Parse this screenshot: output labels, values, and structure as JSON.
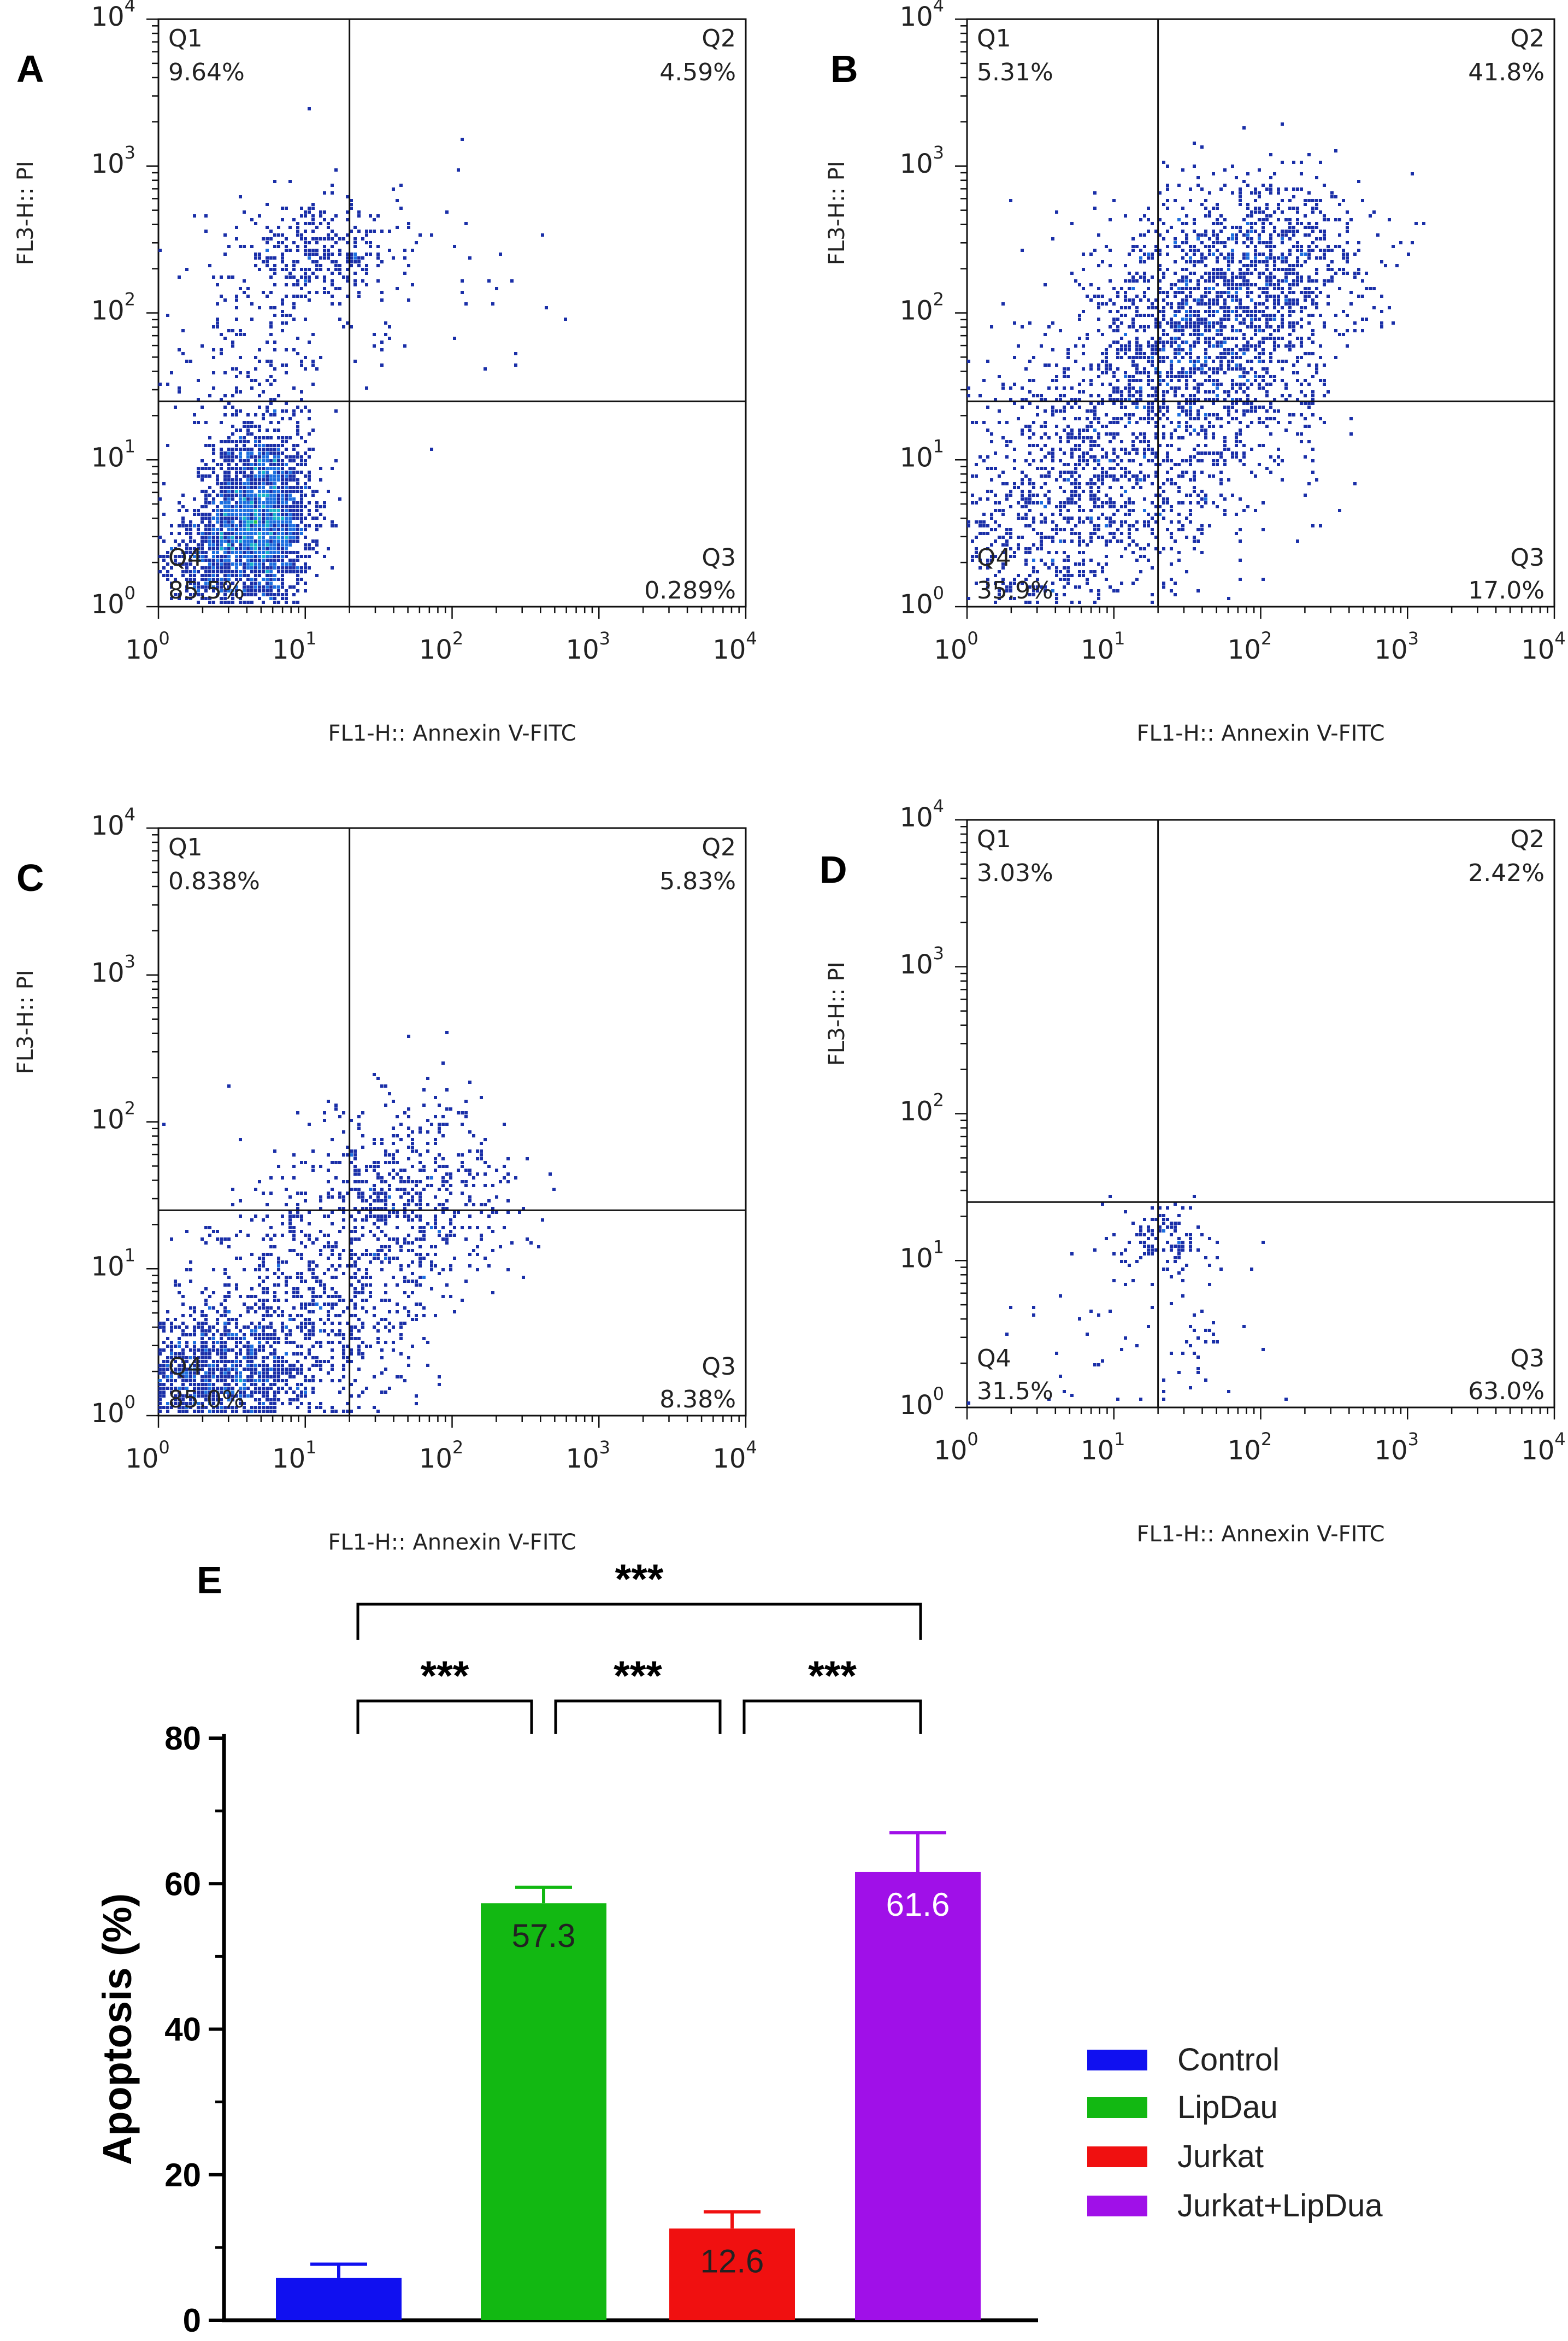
{
  "chart_data": [
    {
      "type": "scatter",
      "panel": "A",
      "xlabel": "FL1-H:: Annexin V-FITC",
      "ylabel": "FL3-H:: PI",
      "x_scale": "log",
      "y_scale": "log",
      "xlim": [
        1,
        10000
      ],
      "ylim": [
        1,
        10000
      ],
      "gate": {
        "x": 20,
        "y": 25
      },
      "quadrants": [
        {
          "name": "Q1",
          "percent": "9.64%",
          "position": "top-left"
        },
        {
          "name": "Q2",
          "percent": "4.59%",
          "position": "top-right"
        },
        {
          "name": "Q3",
          "percent": "0.289%",
          "position": "bottom-right"
        },
        {
          "name": "Q4",
          "percent": "85.5%",
          "position": "bottom-left"
        }
      ],
      "density_clusters": [
        {
          "x": 5,
          "y": 4,
          "sx": 0.17,
          "sy": 0.3,
          "n": 2200
        },
        {
          "x": 2.2,
          "y": 2,
          "sx": 0.2,
          "sy": 0.22,
          "n": 500
        },
        {
          "x": 12,
          "y": 250,
          "sx": 0.28,
          "sy": 0.16,
          "n": 320
        },
        {
          "x": 4,
          "y": 40,
          "sx": 0.3,
          "sy": 0.35,
          "n": 180
        },
        {
          "x": 30,
          "y": 150,
          "sx": 0.5,
          "sy": 0.4,
          "n": 90
        }
      ]
    },
    {
      "type": "scatter",
      "panel": "B",
      "xlabel": "FL1-H:: Annexin V-FITC",
      "ylabel": "FL3-H:: PI",
      "x_scale": "log",
      "y_scale": "log",
      "xlim": [
        1,
        10000
      ],
      "ylim": [
        1,
        10000
      ],
      "gate": {
        "x": 20,
        "y": 25
      },
      "quadrants": [
        {
          "name": "Q1",
          "percent": "5.31%",
          "position": "top-left"
        },
        {
          "name": "Q2",
          "percent": "41.8%",
          "position": "top-right"
        },
        {
          "name": "Q3",
          "percent": "17.0%",
          "position": "bottom-right"
        },
        {
          "name": "Q4",
          "percent": "35.9%",
          "position": "bottom-left"
        }
      ],
      "density_clusters": [
        {
          "x": 40,
          "y": 60,
          "sx": 0.4,
          "sy": 0.45,
          "n": 1600
        },
        {
          "x": 120,
          "y": 250,
          "sx": 0.35,
          "sy": 0.3,
          "n": 600
        },
        {
          "x": 8,
          "y": 8,
          "sx": 0.45,
          "sy": 0.45,
          "n": 900
        },
        {
          "x": 2.5,
          "y": 2,
          "sx": 0.3,
          "sy": 0.3,
          "n": 300
        }
      ]
    },
    {
      "type": "scatter",
      "panel": "C",
      "xlabel": "FL1-H:: Annexin V-FITC",
      "ylabel": "FL3-H:: PI",
      "x_scale": "log",
      "y_scale": "log",
      "xlim": [
        1,
        10000
      ],
      "ylim": [
        1,
        10000
      ],
      "gate": {
        "x": 20,
        "y": 25
      },
      "quadrants": [
        {
          "name": "Q1",
          "percent": "0.838%",
          "position": "top-left"
        },
        {
          "name": "Q2",
          "percent": "5.83%",
          "position": "top-right"
        },
        {
          "name": "Q3",
          "percent": "8.38%",
          "position": "bottom-right"
        },
        {
          "name": "Q4",
          "percent": "85.0%",
          "position": "bottom-left"
        }
      ],
      "density_clusters": [
        {
          "x": 2.5,
          "y": 1.8,
          "sx": 0.35,
          "sy": 0.25,
          "n": 1300
        },
        {
          "x": 10,
          "y": 5,
          "sx": 0.45,
          "sy": 0.4,
          "n": 700
        },
        {
          "x": 50,
          "y": 30,
          "sx": 0.35,
          "sy": 0.35,
          "n": 600
        }
      ]
    },
    {
      "type": "scatter",
      "panel": "D",
      "xlabel": "FL1-H:: Annexin V-FITC",
      "ylabel": "FL3-H:: PI",
      "x_scale": "log",
      "y_scale": "log",
      "xlim": [
        1,
        10000
      ],
      "ylim": [
        1,
        10000
      ],
      "gate": {
        "x": 20,
        "y": 25
      },
      "quadrants": [
        {
          "name": "Q1",
          "percent": "3.03%",
          "position": "top-left"
        },
        {
          "name": "Q2",
          "percent": "2.42%",
          "position": "top-right"
        },
        {
          "name": "Q3",
          "percent": "63.0%",
          "position": "bottom-right"
        },
        {
          "name": "Q4",
          "percent": "31.5%",
          "position": "bottom-left"
        }
      ],
      "density_clusters": [
        {
          "x": 22,
          "y": 14,
          "sx": 0.15,
          "sy": 0.12,
          "n": 120
        },
        {
          "x": 35,
          "y": 3,
          "sx": 0.25,
          "sy": 0.3,
          "n": 50
        },
        {
          "x": 6,
          "y": 3,
          "sx": 0.3,
          "sy": 0.25,
          "n": 25
        }
      ]
    },
    {
      "type": "bar",
      "panel": "E",
      "ylabel": "Apoptosis (%)",
      "ylim": [
        0,
        80
      ],
      "yticks": [
        0,
        20,
        40,
        60,
        80
      ],
      "categories": [
        "Control",
        "LipDau",
        "Jurkat",
        "Jurkat+LipDua"
      ],
      "values": [
        5.8,
        57.3,
        12.6,
        61.6
      ],
      "errors": [
        1.9,
        2.2,
        2.3,
        5.4
      ],
      "value_labels": [
        "",
        "57.3",
        "12.6",
        "61.6"
      ],
      "colors": [
        "#1010f0",
        "#12b812",
        "#f01010",
        "#a010e8"
      ],
      "value_label_colors": [
        "#ffffff",
        "#222222",
        "#222222",
        "#ffffff"
      ],
      "legend": {
        "position": "right",
        "entries": [
          "Control",
          "LipDau",
          "Jurkat",
          "Jurkat+LipDua"
        ]
      },
      "significance": [
        {
          "from": 0,
          "to": 3,
          "label": "***",
          "level": 2
        },
        {
          "from": 0,
          "to": 1,
          "label": "***",
          "level": 1
        },
        {
          "from": 1,
          "to": 2,
          "label": "***",
          "level": 1
        },
        {
          "from": 2,
          "to": 3,
          "label": "***",
          "level": 1
        }
      ]
    }
  ]
}
